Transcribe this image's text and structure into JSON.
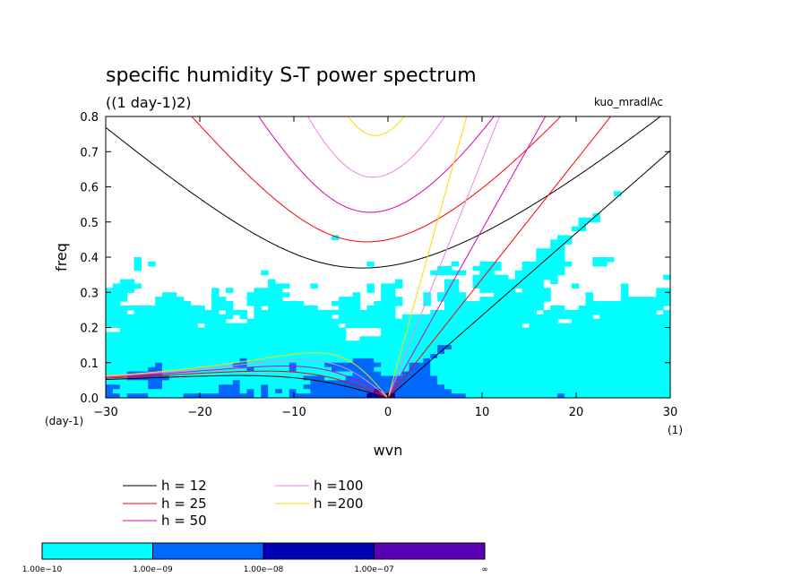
{
  "chart_data": {
    "type": "heatmap",
    "title": "specific humidity S-T power spectrum",
    "subtitle": "((1 day-1)2)",
    "run_label": "kuo_mradlAc",
    "xlabel": "wvn",
    "ylabel": "freq",
    "x_unit": "(1)",
    "y_unit": "(day-1)",
    "xlim": [
      -30,
      30
    ],
    "ylim": [
      0,
      0.8
    ],
    "x_ticks": [
      -30,
      -20,
      -10,
      0,
      10,
      20,
      30
    ],
    "x_tick_labels": [
      "−30",
      "−20",
      "−10",
      "0",
      "10",
      "20",
      "30"
    ],
    "y_ticks": [
      0.0,
      0.1,
      0.2,
      0.3,
      0.4,
      0.5,
      0.6,
      0.7,
      0.8
    ],
    "y_tick_labels": [
      "0.0",
      "0.1",
      "0.2",
      "0.3",
      "0.4",
      "0.5",
      "0.6",
      "0.7",
      "0.8"
    ],
    "contour_levels": [
      {
        "label": "1.00e−10",
        "color": "#00ffff"
      },
      {
        "label": "1.00e−09",
        "color": "#0068ff"
      },
      {
        "label": "1.00e−08",
        "color": "#0000b4"
      },
      {
        "label": "1.00e−07",
        "color": "#5a00b4"
      },
      {
        "label": "∞",
        "color": ""
      }
    ],
    "dispersion_curves": [
      {
        "name": "h = 12",
        "h": 12,
        "color": "#000000"
      },
      {
        "name": "h = 25",
        "h": 25,
        "color": "#ff0000"
      },
      {
        "name": "h = 50",
        "h": 50,
        "color": "#e600aa"
      },
      {
        "name": "h =100",
        "h": 100,
        "color": "#ee82ee"
      },
      {
        "name": "h =200",
        "h": 200,
        "color": "#ffd700"
      }
    ]
  }
}
